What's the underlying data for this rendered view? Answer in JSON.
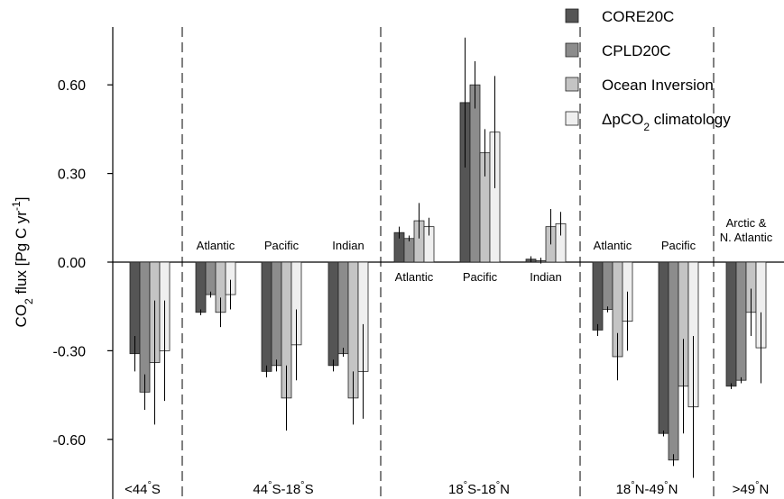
{
  "chart_data": {
    "type": "bar",
    "ylabel": "CO2 flux [Pg C yr-1]",
    "ylabel_parts": {
      "main": "CO",
      "sub": "2",
      "rest": " flux [Pg C yr",
      "sup": "-1",
      "close": "]"
    },
    "ylim": [
      -0.72,
      0.72
    ],
    "yticks": [
      0.6,
      0.3,
      0.0,
      -0.3,
      -0.6
    ],
    "ytick_labels": [
      "0.60",
      "0.30",
      "0.00",
      "-0.30",
      "-0.60"
    ],
    "grid": false,
    "legend_position": "top-right",
    "series": [
      {
        "name": "CORE20C",
        "color": "#555555"
      },
      {
        "name": "CPLD20C",
        "color": "#8c8c8c"
      },
      {
        "name": "Ocean Inversion",
        "color": "#c4c4c4"
      },
      {
        "name": "ΔpCO2 climatology",
        "name_parts": {
          "main": "ΔpCO",
          "sub": "2",
          "rest": " climatology"
        },
        "color": "#efefef"
      }
    ],
    "groups": [
      {
        "basin": "",
        "values": [
          -0.31,
          -0.44,
          -0.34,
          -0.3
        ],
        "errors": [
          [
            -0.37,
            -0.25
          ],
          [
            -0.5,
            -0.38
          ],
          [
            -0.55,
            -0.13
          ],
          [
            -0.47,
            -0.13
          ]
        ]
      },
      {
        "basin": "Atlantic",
        "values": [
          -0.17,
          -0.11,
          -0.17,
          -0.11
        ],
        "errors": [
          [
            -0.18,
            -0.16
          ],
          [
            -0.12,
            -0.1
          ],
          [
            -0.22,
            -0.12
          ],
          [
            -0.16,
            -0.06
          ]
        ]
      },
      {
        "basin": "Pacific",
        "values": [
          -0.37,
          -0.35,
          -0.46,
          -0.28
        ],
        "errors": [
          [
            -0.39,
            -0.35
          ],
          [
            -0.37,
            -0.33
          ],
          [
            -0.57,
            -0.35
          ],
          [
            -0.4,
            -0.16
          ]
        ]
      },
      {
        "basin": "Indian",
        "values": [
          -0.35,
          -0.31,
          -0.46,
          -0.37
        ],
        "errors": [
          [
            -0.37,
            -0.33
          ],
          [
            -0.32,
            -0.29
          ],
          [
            -0.55,
            -0.37
          ],
          [
            -0.53,
            -0.21
          ]
        ]
      },
      {
        "basin": "Atlantic",
        "values": [
          0.1,
          0.08,
          0.14,
          0.12
        ],
        "errors": [
          [
            0.08,
            0.12
          ],
          [
            0.07,
            0.09
          ],
          [
            0.08,
            0.2
          ],
          [
            0.09,
            0.15
          ]
        ]
      },
      {
        "basin": "Pacific",
        "values": [
          0.54,
          0.6,
          0.37,
          0.44
        ],
        "errors": [
          [
            0.32,
            0.76
          ],
          [
            0.52,
            0.68
          ],
          [
            0.29,
            0.45
          ],
          [
            0.25,
            0.63
          ]
        ]
      },
      {
        "basin": "Indian",
        "values": [
          0.01,
          0.005,
          0.12,
          0.13
        ],
        "errors": [
          [
            0.0,
            0.02
          ],
          [
            -0.005,
            0.015
          ],
          [
            0.06,
            0.18
          ],
          [
            0.09,
            0.17
          ]
        ]
      },
      {
        "basin": "Atlantic",
        "values": [
          -0.23,
          -0.16,
          -0.32,
          -0.2
        ],
        "errors": [
          [
            -0.25,
            -0.21
          ],
          [
            -0.17,
            -0.15
          ],
          [
            -0.4,
            -0.24
          ],
          [
            -0.3,
            -0.1
          ]
        ]
      },
      {
        "basin": "Pacific",
        "values": [
          -0.58,
          -0.67,
          -0.42,
          -0.49
        ],
        "errors": [
          [
            -0.59,
            -0.57
          ],
          [
            -0.69,
            -0.65
          ],
          [
            -0.58,
            -0.26
          ],
          [
            -0.73,
            -0.25
          ]
        ]
      },
      {
        "basin": "Arctic & N. Atlantic",
        "basin_lines": [
          "Arctic &",
          "N. Atlantic"
        ],
        "values": [
          -0.42,
          -0.4,
          -0.17,
          -0.29
        ],
        "errors": [
          [
            -0.43,
            -0.41
          ],
          [
            -0.41,
            -0.39
          ],
          [
            -0.25,
            -0.09
          ],
          [
            -0.41,
            -0.17
          ]
        ]
      }
    ],
    "regions": [
      "<44°S",
      "44°S-18°S",
      "18°S-18°N",
      "18°N-49°N",
      ">49°N"
    ],
    "region_parts": [
      [
        {
          "t": "<44"
        },
        {
          "t": "°",
          "sup": true
        },
        {
          "t": "S"
        }
      ],
      [
        {
          "t": "44"
        },
        {
          "t": "°",
          "sup": true
        },
        {
          "t": "S-18"
        },
        {
          "t": "°",
          "sup": true
        },
        {
          "t": "S"
        }
      ],
      [
        {
          "t": "18"
        },
        {
          "t": "°",
          "sup": true
        },
        {
          "t": "S-18"
        },
        {
          "t": "°",
          "sup": true
        },
        {
          "t": "N"
        }
      ],
      [
        {
          "t": "18"
        },
        {
          "t": "°",
          "sup": true
        },
        {
          "t": "N-49"
        },
        {
          "t": "°",
          "sup": true
        },
        {
          "t": "N"
        }
      ],
      [
        {
          "t": ">49"
        },
        {
          "t": "°",
          "sup": true
        },
        {
          "t": "N"
        }
      ]
    ]
  }
}
